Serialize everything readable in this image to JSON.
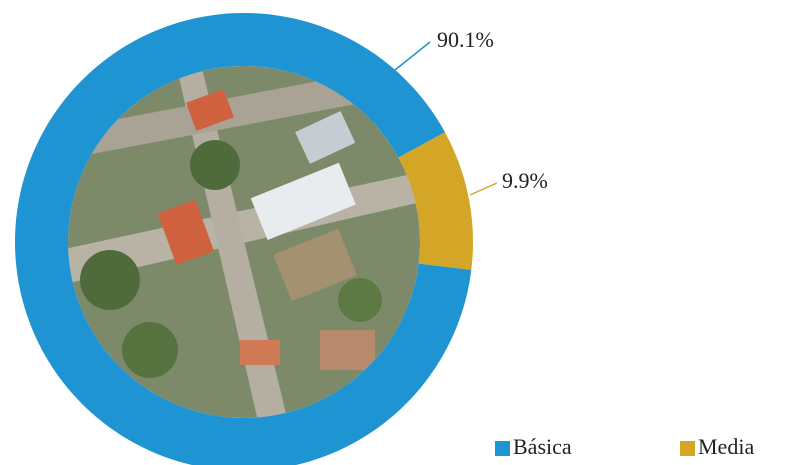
{
  "chart_data": {
    "type": "donut",
    "categories": [
      "Básica",
      "Media"
    ],
    "values": [
      90.1,
      9.9
    ],
    "value_labels": [
      "90.1%",
      "9.9%"
    ],
    "colors": [
      "#1f94d2",
      "#d4a628"
    ]
  }
}
